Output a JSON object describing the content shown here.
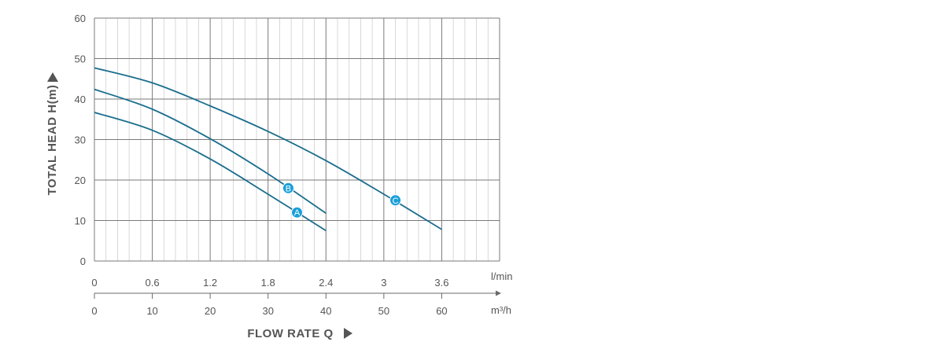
{
  "chart_data": {
    "type": "line",
    "ylabel": "TOTAL HEAD H(m)",
    "xlabel": "FLOW RATE Q",
    "ylim": [
      0,
      60
    ],
    "y_ticks": [
      "0",
      "10",
      "20",
      "30",
      "40",
      "50",
      "60"
    ],
    "x_secondary": {
      "unit": "l/min",
      "ticks": [
        "0",
        "0.6",
        "1.2",
        "1.8",
        "2.4",
        "3",
        "3.6"
      ]
    },
    "x_primary": {
      "unit": "m³/h",
      "ticks": [
        "0",
        "10",
        "20",
        "30",
        "40",
        "50",
        "60"
      ],
      "xlim": [
        0,
        70
      ]
    },
    "grid": true,
    "series": [
      {
        "name": "A",
        "x": [
          0,
          10,
          20,
          30,
          40
        ],
        "y": [
          36.7,
          32.3,
          25.2,
          16.5,
          7.5
        ],
        "label_at": [
          35,
          12
        ]
      },
      {
        "name": "B",
        "x": [
          0,
          10,
          20,
          30,
          40
        ],
        "y": [
          42.4,
          37.5,
          30.2,
          21.5,
          11.8
        ],
        "label_at": [
          33.5,
          18
        ]
      },
      {
        "name": "C",
        "x": [
          0,
          10,
          20,
          30,
          40,
          50,
          60
        ],
        "y": [
          47.7,
          44.0,
          38.3,
          32.0,
          24.8,
          16.5,
          7.8
        ],
        "label_at": [
          52,
          15
        ]
      }
    ],
    "colors": {
      "line": "#1a6e8e",
      "marker": "#1a9fd9",
      "grid_major": "#7a7a7a",
      "grid_minor": "#cfcfcf",
      "text": "#555555"
    }
  }
}
